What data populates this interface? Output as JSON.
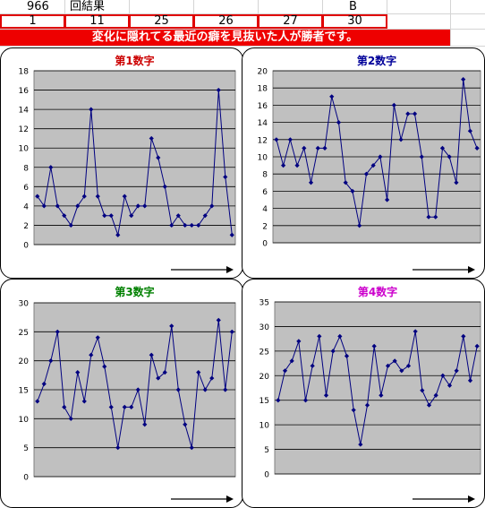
{
  "sheet": {
    "draw_no": "966",
    "draw_label": "回結果",
    "set_label": "B",
    "numbers": [
      "1",
      "11",
      "25",
      "26",
      "27",
      "30"
    ],
    "banner": "変化に隠れてる最近の癖を見抜いた人が勝者です。"
  },
  "colors": {
    "plot_bg": "#c0c0c0",
    "series": "#000080",
    "banner": "#ee0000",
    "cell_border": "#e00000"
  },
  "charts": [
    {
      "type": "line",
      "title": "第1数字",
      "title_color": "#cc0000",
      "ylim": [
        0,
        18
      ],
      "yticks": [
        "0",
        "2",
        "4",
        "6",
        "8",
        "10",
        "12",
        "14",
        "16",
        "18"
      ],
      "values": [
        5,
        4,
        8,
        4,
        3,
        2,
        4,
        5,
        14,
        5,
        3,
        3,
        1,
        5,
        3,
        4,
        4,
        11,
        9,
        6,
        2,
        3,
        2,
        2,
        2,
        3,
        4,
        16,
        7,
        1
      ]
    },
    {
      "type": "line",
      "title": "第2数字",
      "title_color": "#000099",
      "ylim": [
        0,
        20
      ],
      "yticks": [
        "0",
        "2",
        "4",
        "6",
        "8",
        "10",
        "12",
        "14",
        "16",
        "18",
        "20"
      ],
      "values": [
        12,
        9,
        12,
        9,
        11,
        7,
        11,
        11,
        17,
        14,
        7,
        6,
        2,
        8,
        9,
        10,
        5,
        16,
        12,
        15,
        15,
        10,
        3,
        3,
        11,
        10,
        7,
        19,
        13,
        11
      ]
    },
    {
      "type": "line",
      "title": "第3数字",
      "title_color": "#008000",
      "ylim": [
        0,
        30
      ],
      "yticks": [
        "0",
        "5",
        "10",
        "15",
        "20",
        "25",
        "30"
      ],
      "values": [
        13,
        16,
        20,
        25,
        12,
        10,
        18,
        13,
        21,
        24,
        19,
        12,
        5,
        12,
        12,
        15,
        9,
        21,
        17,
        18,
        26,
        15,
        9,
        5,
        18,
        15,
        17,
        27,
        15,
        25
      ]
    },
    {
      "type": "line",
      "title": "第4数字",
      "title_color": "#cc00cc",
      "ylim": [
        0,
        35
      ],
      "yticks": [
        "0",
        "5",
        "10",
        "15",
        "20",
        "25",
        "30",
        "35"
      ],
      "values": [
        15,
        21,
        23,
        27,
        15,
        22,
        28,
        16,
        25,
        28,
        24,
        13,
        6,
        14,
        26,
        16,
        22,
        23,
        21,
        22,
        29,
        17,
        14,
        16,
        20,
        18,
        21,
        28,
        19,
        26
      ]
    }
  ]
}
